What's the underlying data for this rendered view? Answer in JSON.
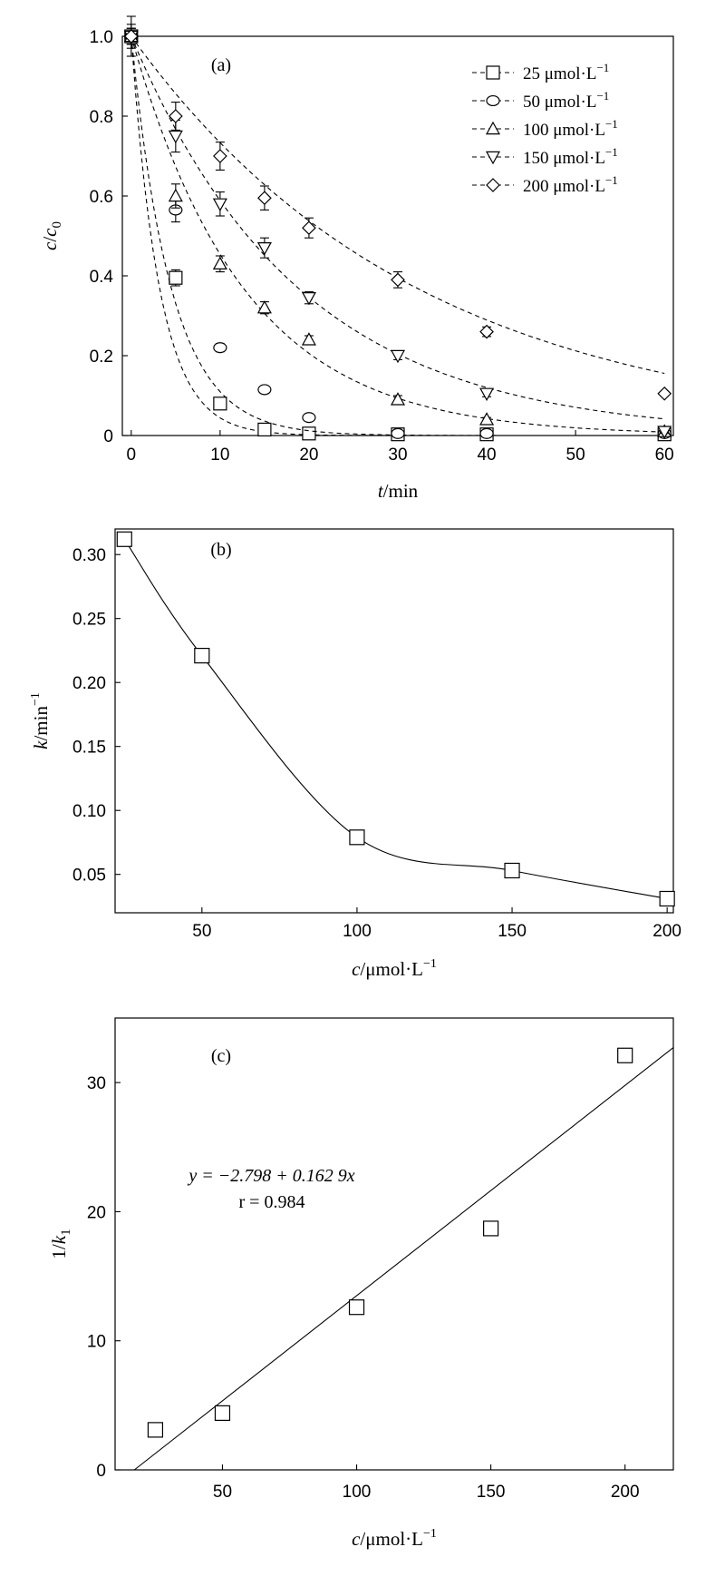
{
  "chart_data": [
    {
      "panel": "(a)",
      "type": "scatter",
      "xlabel_italic": "t",
      "xlabel_rest": "/min",
      "ylabel_italic": "c",
      "ylabel_mid": "/",
      "ylabel_italic2": "c",
      "ylabel_sub": "0",
      "xlim": [
        -1,
        61
      ],
      "ylim": [
        0,
        1.0
      ],
      "xticks": [
        0,
        10,
        20,
        30,
        40,
        50,
        60
      ],
      "yticks": [
        0,
        0.2,
        0.4,
        0.6,
        0.8,
        1.0
      ],
      "ytick_labels": [
        "0",
        "0.2",
        "0.4",
        "0.6",
        "0.8",
        "1.0"
      ],
      "legend_position": "top-right",
      "series": [
        {
          "name": "25 μmol·L",
          "sup": "−1",
          "marker": "square",
          "k": 0.312,
          "x": [
            0,
            5,
            10,
            15,
            20,
            30,
            40,
            60
          ],
          "y": [
            1.0,
            0.395,
            0.08,
            0.015,
            0.005,
            0.003,
            0.003,
            0.003
          ],
          "err": [
            0.05,
            0.02,
            0.005,
            0.005,
            0.003,
            0.003,
            0.003,
            0.003
          ]
        },
        {
          "name": "50 μmol·L",
          "sup": "−1",
          "marker": "circle",
          "k": 0.221,
          "x": [
            0,
            5,
            10,
            15,
            20,
            30,
            40,
            60
          ],
          "y": [
            1.0,
            0.565,
            0.22,
            0.115,
            0.045,
            0.005,
            0.005,
            0.005
          ],
          "err": [
            0.03,
            0.03,
            0.01,
            0.005,
            0.005,
            0.003,
            0.003,
            0.003
          ]
        },
        {
          "name": "100 μmol·L",
          "sup": "−1",
          "marker": "triangle-up",
          "k": 0.079,
          "x": [
            0,
            5,
            10,
            15,
            20,
            30,
            40,
            60
          ],
          "y": [
            1.0,
            0.6,
            0.43,
            0.32,
            0.24,
            0.09,
            0.04,
            0.01
          ],
          "err": [
            0.02,
            0.03,
            0.02,
            0.015,
            0.01,
            0.01,
            0.005,
            0.005
          ]
        },
        {
          "name": "150 μmol·L",
          "sup": "−1",
          "marker": "triangle-down",
          "k": 0.053,
          "x": [
            0,
            5,
            10,
            15,
            20,
            30,
            40,
            60
          ],
          "y": [
            1.0,
            0.75,
            0.58,
            0.47,
            0.345,
            0.2,
            0.105,
            0.01
          ],
          "err": [
            0.02,
            0.04,
            0.03,
            0.025,
            0.015,
            0.01,
            0.008,
            0.005
          ]
        },
        {
          "name": "200 μmol·L",
          "sup": "−1",
          "marker": "diamond",
          "k": 0.031,
          "x": [
            0,
            5,
            10,
            15,
            20,
            30,
            40,
            60
          ],
          "y": [
            1.0,
            0.8,
            0.7,
            0.595,
            0.52,
            0.39,
            0.26,
            0.105
          ],
          "err": [
            0.02,
            0.035,
            0.035,
            0.03,
            0.025,
            0.02,
            0.012,
            0.005
          ]
        }
      ]
    },
    {
      "panel": "(b)",
      "type": "scatter",
      "xlabel_italic": "c",
      "xlabel_rest": "/μmol·L",
      "xlabel_sup": "−1",
      "ylabel_italic": "k",
      "ylabel_rest": "/min",
      "ylabel_sup": "−1",
      "xlim": [
        22,
        202
      ],
      "ylim": [
        0.02,
        0.32
      ],
      "xticks": [
        50,
        100,
        150,
        200
      ],
      "yticks": [
        0.05,
        0.1,
        0.15,
        0.2,
        0.25,
        0.3
      ],
      "ytick_labels": [
        "0.05",
        "0.10",
        "0.15",
        "0.20",
        "0.25",
        "0.30"
      ],
      "x": [
        25,
        50,
        100,
        150,
        200
      ],
      "y": [
        0.312,
        0.221,
        0.079,
        0.053,
        0.031
      ]
    },
    {
      "panel": "(c)",
      "type": "scatter",
      "xlabel_italic": "c",
      "xlabel_rest": "/μmol·L",
      "xlabel_sup": "−1",
      "ylabel_rest": "1/",
      "ylabel_italic": "k",
      "ylabel_sub": "1",
      "xlim": [
        10,
        218
      ],
      "ylim": [
        0,
        35
      ],
      "xticks": [
        50,
        100,
        150,
        200
      ],
      "yticks": [
        0,
        10,
        20,
        30
      ],
      "ytick_labels": [
        "0",
        "10",
        "20",
        "30"
      ],
      "x": [
        25,
        50,
        100,
        150,
        200
      ],
      "y": [
        3.1,
        4.4,
        12.6,
        18.7,
        32.1
      ],
      "fit_intercept": -2.798,
      "fit_slope": 0.1629,
      "equation_text": "y = −2.798 + 0.162 9x",
      "r_text": "r = 0.984"
    }
  ]
}
